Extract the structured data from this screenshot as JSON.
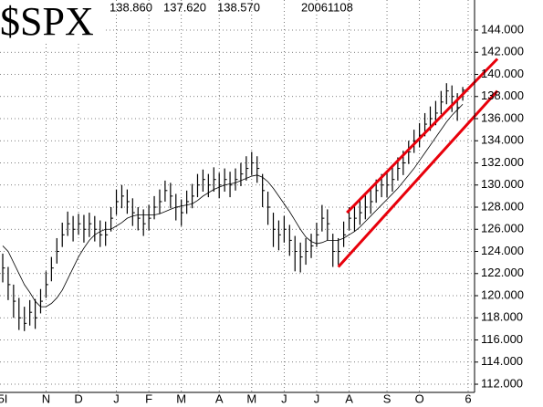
{
  "chart_data": {
    "type": "ohlc",
    "title": "$SPX",
    "quote": [
      "138.860",
      "137.620",
      "138.570"
    ],
    "date": "20061108",
    "color": "#000000",
    "high": [
      123.8,
      122.6,
      121,
      119.8,
      119,
      119.6,
      119.7,
      120.6,
      122.2,
      123.5,
      125.2,
      126.6,
      127.6,
      127.2,
      127.4,
      127.3,
      127.5,
      127.2,
      126.8,
      126.7,
      128,
      129.6,
      130,
      129.6,
      128.8,
      128,
      127.8,
      128.2,
      129,
      129.6,
      130.4,
      130.2,
      129.2,
      128.7,
      129.5,
      130.1,
      131,
      131.4,
      131,
      131.6,
      131.1,
      131.5,
      131.2,
      131.5,
      132,
      132.6,
      133,
      132.6,
      131,
      129.4,
      127.5,
      126.8,
      127.2,
      126.4,
      125.4,
      124.8,
      125.2,
      125.6,
      126.6,
      128.2,
      127.8,
      125.6,
      125.2,
      126.7,
      128,
      128.2,
      128.6,
      129.1,
      129.6,
      130.5,
      131,
      131.1,
      131.6,
      132.5,
      133.1,
      134,
      135,
      135.6,
      136.5,
      137.1,
      137.6,
      138.5,
      139.2,
      139,
      138.3,
      138.86
    ],
    "low": [
      121.2,
      119.6,
      118,
      116.9,
      116.8,
      117.3,
      117,
      118.4,
      119.8,
      121.3,
      122.9,
      124.4,
      125.4,
      124.9,
      125.5,
      124.8,
      125.3,
      124.9,
      124.4,
      124.5,
      125.8,
      127.3,
      127.9,
      127.4,
      126.3,
      125.9,
      125.4,
      125.9,
      126.9,
      127.4,
      128.5,
      127.9,
      126.8,
      126.3,
      127.4,
      127.9,
      128.9,
      129.4,
      128.9,
      129.4,
      128.8,
      129.4,
      128.9,
      129.5,
      129.9,
      130.4,
      130.9,
      130.2,
      128,
      126.4,
      124.4,
      124.1,
      124.8,
      123.6,
      122.2,
      122.1,
      122.8,
      123.4,
      124.4,
      125.8,
      125,
      122.6,
      122.8,
      124.4,
      125.9,
      125.8,
      126.4,
      126.9,
      127.4,
      128.4,
      128.9,
      128.9,
      129.4,
      130.4,
      130.9,
      131.9,
      132.9,
      133.4,
      134.4,
      134.9,
      135.4,
      136.4,
      137.3,
      136.6,
      135.8,
      137.62
    ],
    "close": [
      122.5,
      121,
      119.5,
      118,
      117.5,
      118.5,
      118,
      119.5,
      121,
      122.5,
      124,
      125.5,
      126.5,
      126,
      126.5,
      126,
      126.5,
      126,
      125.5,
      125.5,
      127,
      128.5,
      129,
      128.5,
      127.5,
      127,
      126.5,
      127,
      128,
      128.5,
      129.5,
      129,
      128,
      127.5,
      128.5,
      129,
      130,
      130.5,
      130,
      130.5,
      130,
      130.5,
      130,
      130.5,
      131,
      131.5,
      132,
      131.5,
      129.5,
      128,
      126,
      125.5,
      126,
      125,
      124,
      123.5,
      124,
      124.5,
      125.5,
      127,
      126.5,
      124,
      124,
      125.5,
      127,
      127,
      127.5,
      128,
      128.5,
      129.5,
      130,
      130,
      130.5,
      131.5,
      132,
      133,
      134,
      134.5,
      135.5,
      136,
      136.5,
      137.5,
      138.5,
      138,
      137,
      138.57
    ],
    "ma": [
      124.5,
      124,
      123,
      122,
      121,
      120.3,
      119.5,
      119,
      119,
      119.3,
      119.8,
      120.5,
      121.5,
      122.5,
      123.5,
      124.3,
      125,
      125.5,
      125.8,
      126,
      126,
      126.3,
      126.6,
      127,
      127.2,
      127.3,
      127.3,
      127.3,
      127.3,
      127.4,
      127.6,
      127.8,
      128,
      128.1,
      128.2,
      128.3,
      128.6,
      129,
      129.3,
      129.6,
      129.8,
      130,
      130.1,
      130.2,
      130.4,
      130.6,
      130.8,
      130.9,
      130.7,
      130.3,
      129.7,
      129,
      128.3,
      127.6,
      126.8,
      126,
      125.3,
      124.9,
      124.7,
      124.8,
      125,
      125,
      125,
      125.2,
      125.5,
      125.8,
      126.2,
      126.7,
      127.2,
      127.7,
      128.2,
      128.7,
      129.2,
      129.7,
      130.3,
      130.9,
      131.5,
      132.2,
      132.9,
      133.6,
      134.3,
      135,
      135.7,
      136.3,
      136.8,
      137.3
    ],
    "ma_color": "#000000",
    "trendlines": [
      {
        "color": "#e8000b",
        "x": [
          62,
          91.4
        ],
        "y": [
          122.6,
          138.5
        ]
      },
      {
        "color": "#e8000b",
        "x": [
          63.6,
          91.4
        ],
        "y": [
          127.5,
          141.4
        ]
      }
    ],
    "xlim": [
      0,
      86
    ],
    "xticks": [
      {
        "value": 0,
        "label": "5I"
      },
      {
        "value": 8,
        "label": "N"
      },
      {
        "value": 14,
        "label": "D"
      },
      {
        "value": 21,
        "label": "J"
      },
      {
        "value": 27,
        "label": "F"
      },
      {
        "value": 33,
        "label": "M"
      },
      {
        "value": 40,
        "label": "A"
      },
      {
        "value": 46,
        "label": "M"
      },
      {
        "value": 52,
        "label": "J"
      },
      {
        "value": 58,
        "label": "J"
      },
      {
        "value": 64,
        "label": "A"
      },
      {
        "value": 71,
        "label": "S"
      },
      {
        "value": 77,
        "label": "O"
      },
      {
        "value": 86,
        "label": "6"
      }
    ],
    "ylim": [
      111.26,
      146.72
    ],
    "yticks": [
      {
        "value": 112,
        "label": "112.000"
      },
      {
        "value": 114,
        "label": "114.000"
      },
      {
        "value": 116,
        "label": "116.000"
      },
      {
        "value": 118,
        "label": "118.000"
      },
      {
        "value": 120,
        "label": "120.000"
      },
      {
        "value": 122,
        "label": "122.000"
      },
      {
        "value": 124,
        "label": "124.000"
      },
      {
        "value": 126,
        "label": "126.000"
      },
      {
        "value": 128,
        "label": "128.000"
      },
      {
        "value": 130,
        "label": "130.000"
      },
      {
        "value": 132,
        "label": "132.000"
      },
      {
        "value": 134,
        "label": "134.000"
      },
      {
        "value": 136,
        "label": "136.000"
      },
      {
        "value": 138,
        "label": "138.000"
      },
      {
        "value": 140,
        "label": "140.000"
      },
      {
        "value": 142,
        "label": "142.000"
      },
      {
        "value": 144,
        "label": "144.000"
      }
    ],
    "grid": true
  }
}
